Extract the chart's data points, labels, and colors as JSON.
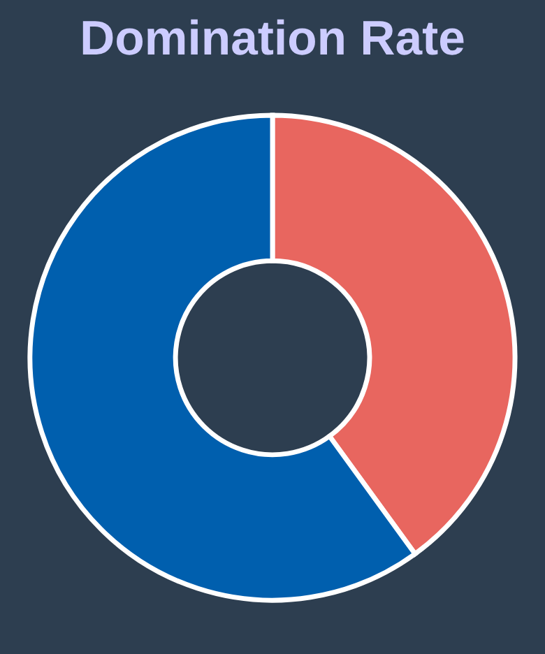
{
  "chart_data": {
    "type": "donut",
    "title": "Domination Rate",
    "categories": [
      null,
      null
    ],
    "values": [
      40,
      60
    ],
    "colors": [
      "#e8665f",
      "#005fae"
    ]
  }
}
